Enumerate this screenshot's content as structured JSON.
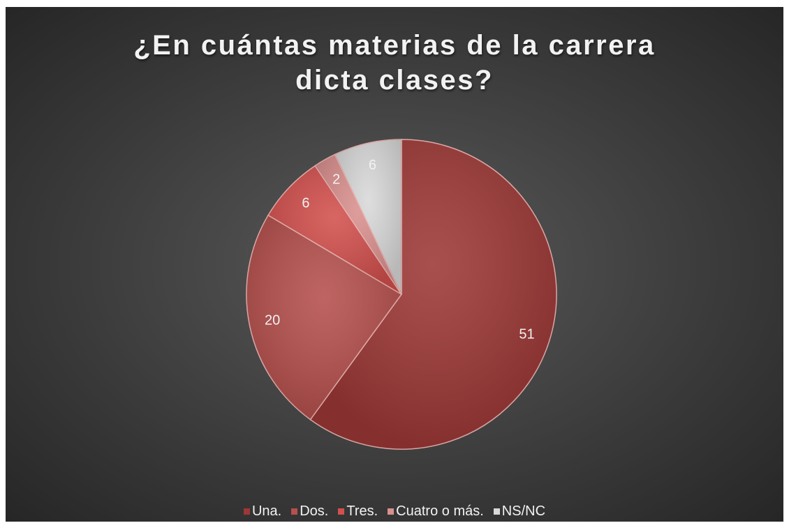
{
  "chart_data": {
    "type": "pie",
    "title": "¿En cuántas materias de la carrera dicta clases?",
    "categories": [
      "Una.",
      "Dos.",
      "Tres.",
      "Cuatro o más.",
      "NS/NC"
    ],
    "values": [
      51,
      20,
      6,
      2,
      6
    ],
    "colors": [
      "#9c3836",
      "#b5504d",
      "#d2504d",
      "#d9908e",
      "#d9d9d9"
    ],
    "legend": "bottom"
  }
}
